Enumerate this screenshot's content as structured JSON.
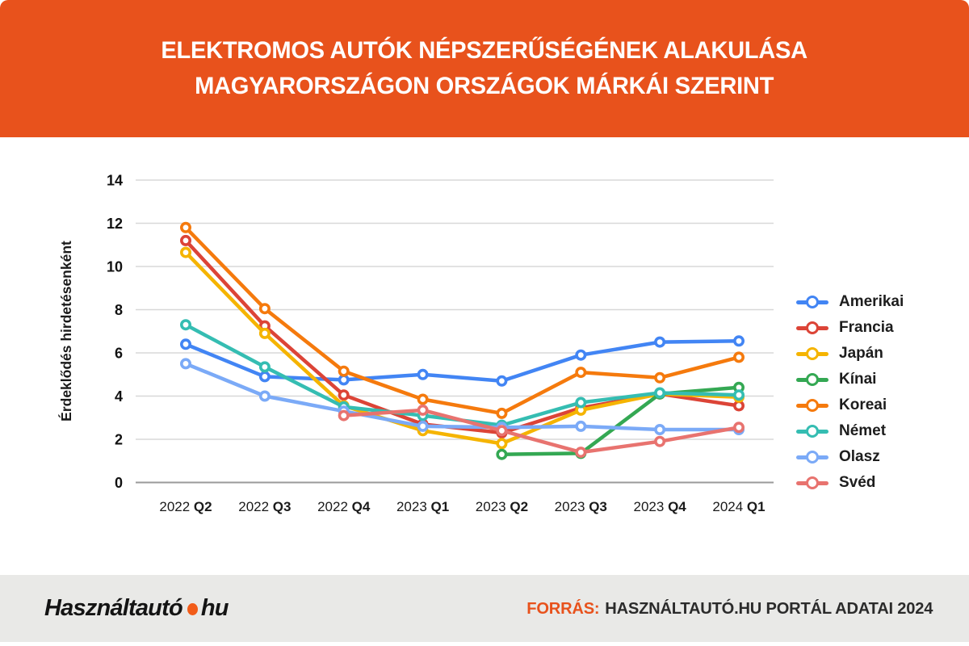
{
  "header": {
    "title_line1": "ELEKTROMOS AUTÓK NÉPSZERŰSÉGÉNEK ALAKULÁSA",
    "title_line2": "MAGYARORSZÁGON ORSZÁGOK MÁRKÁI SZERINT",
    "bg_color": "#E8521C"
  },
  "chart_data": {
    "type": "line",
    "title": "Elektromos autók népszerűségének alakulása Magyarországon országok márkái szerint",
    "ylabel": "Érdeklődés hirdetésenként",
    "xlabel": "",
    "categories": [
      "2022 Q2",
      "2022 Q3",
      "2022 Q4",
      "2023 Q1",
      "2023 Q2",
      "2023 Q3",
      "2023 Q4",
      "2024 Q1"
    ],
    "y_ticks": [
      0,
      2,
      4,
      6,
      8,
      10,
      12,
      14
    ],
    "ylim": [
      0,
      14.8
    ],
    "grid": true,
    "legend_position": "right",
    "series": [
      {
        "name": "Amerikai",
        "color": "#4285F4",
        "values": [
          6.4,
          4.9,
          4.75,
          5.0,
          4.7,
          5.9,
          6.5,
          6.55
        ]
      },
      {
        "name": "Francia",
        "color": "#DC4437",
        "values": [
          11.2,
          7.25,
          4.05,
          2.7,
          2.3,
          3.45,
          4.1,
          3.55
        ]
      },
      {
        "name": "Japán",
        "color": "#F5B400",
        "values": [
          10.65,
          6.9,
          3.55,
          2.4,
          1.8,
          3.35,
          4.1,
          3.95
        ]
      },
      {
        "name": "Kínai",
        "color": "#34A853",
        "values": [
          null,
          null,
          null,
          null,
          1.3,
          1.35,
          4.1,
          4.4
        ]
      },
      {
        "name": "Koreai",
        "color": "#F57A0D",
        "values": [
          11.8,
          8.05,
          5.15,
          3.85,
          3.2,
          5.1,
          4.85,
          5.8
        ]
      },
      {
        "name": "Német",
        "color": "#35BDB2",
        "values": [
          7.3,
          5.35,
          3.5,
          3.1,
          2.65,
          3.7,
          4.15,
          4.05
        ]
      },
      {
        "name": "Olasz",
        "color": "#7BAAF7",
        "values": [
          5.5,
          4.0,
          3.3,
          2.6,
          2.55,
          2.6,
          2.45,
          2.45
        ]
      },
      {
        "name": "Svéd",
        "color": "#E8736F",
        "values": [
          null,
          null,
          3.1,
          3.35,
          2.4,
          1.4,
          1.9,
          2.55
        ]
      }
    ]
  },
  "footer": {
    "bg_color": "#E9E9E7",
    "logo_text": "Használtautó",
    "logo_suffix": "hu",
    "logo_dot_color": "#F25C19",
    "source_prefix": "FORRÁS:",
    "source_text": "HASZNÁLTAUTÓ.HU PORTÁL ADATAI 2024",
    "accent_color": "#E8521C"
  }
}
